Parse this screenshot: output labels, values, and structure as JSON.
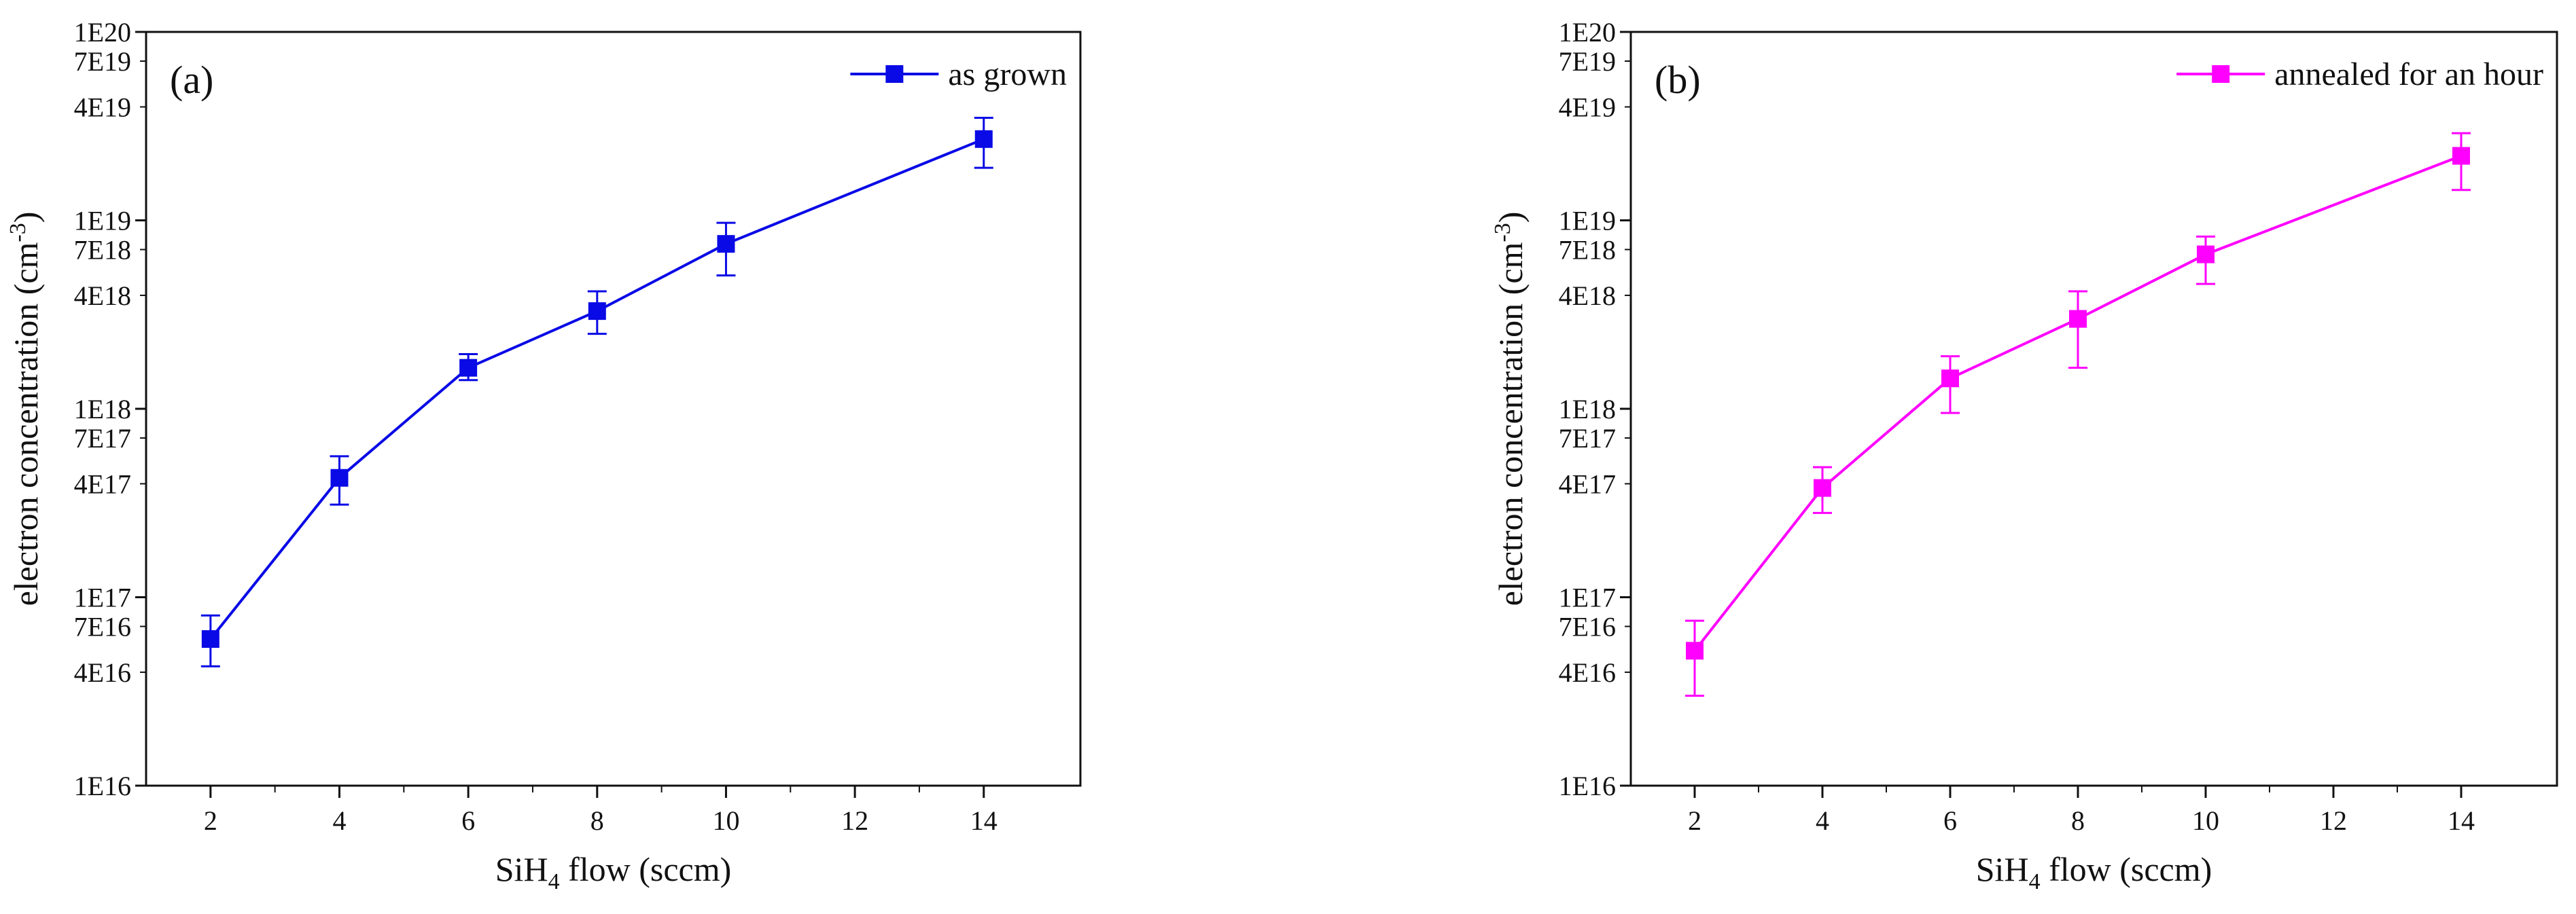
{
  "chart_data": [
    {
      "type": "line",
      "panel_label": "(a)",
      "xlabel": {
        "main": "SiH",
        "sub": "4",
        "rest": " flow (sccm)"
      },
      "ylabel": {
        "main": "electron concentration (cm",
        "sup": "-3",
        "close": ")"
      },
      "xlim": [
        1,
        15.5
      ],
      "ylim": [
        1e+16,
        1e+20
      ],
      "yscale": "log",
      "x_ticks": [
        2,
        4,
        6,
        8,
        10,
        12,
        14
      ],
      "x_tick_labels": [
        "2",
        "4",
        "6",
        "8",
        "10",
        "12",
        "14"
      ],
      "y_ticks": [
        1e+16,
        4e+16,
        7e+16,
        1e+17,
        4e+17,
        7e+17,
        1e+18,
        4e+18,
        7e+18,
        1e+19,
        4e+19,
        7e+19,
        1e+20
      ],
      "y_tick_labels": [
        "1E16",
        "4E16",
        "7E16",
        "1E17",
        "4E17",
        "7E17",
        "1E18",
        "4E18",
        "7E18",
        "1E19",
        "4E19",
        "7E19",
        "1E20"
      ],
      "legend_position": "top-right",
      "series": [
        {
          "name": "as grown",
          "color": "#0a0ae6",
          "marker": "square",
          "x": [
            2,
            4,
            6,
            8,
            10,
            14
          ],
          "y": [
            6e+16,
            4.3e+17,
            1.65e+18,
            3.3e+18,
            7.5e+18,
            2.7e+19
          ],
          "err_low": [
            4.3e+16,
            3.1e+17,
            1.42e+18,
            2.5e+18,
            5.1e+18,
            1.9e+19
          ],
          "err_high": [
            8e+16,
            5.6e+17,
            1.95e+18,
            4.2e+18,
            9.7e+18,
            3.5e+19
          ]
        }
      ]
    },
    {
      "type": "line",
      "panel_label": "(b)",
      "xlabel": {
        "main": "SiH",
        "sub": "4",
        "rest": " flow (sccm)"
      },
      "ylabel": {
        "main": "electron concentration (cm",
        "sup": "-3",
        "close": ")"
      },
      "xlim": [
        1,
        15.5
      ],
      "ylim": [
        1e+16,
        1e+20
      ],
      "yscale": "log",
      "x_ticks": [
        2,
        4,
        6,
        8,
        10,
        12,
        14
      ],
      "x_tick_labels": [
        "2",
        "4",
        "6",
        "8",
        "10",
        "12",
        "14"
      ],
      "y_ticks": [
        1e+16,
        4e+16,
        7e+16,
        1e+17,
        4e+17,
        7e+17,
        1e+18,
        4e+18,
        7e+18,
        1e+19,
        4e+19,
        7e+19,
        1e+20
      ],
      "y_tick_labels": [
        "1E16",
        "4E16",
        "7E16",
        "1E17",
        "4E17",
        "7E17",
        "1E18",
        "4E18",
        "7E18",
        "1E19",
        "4E19",
        "7E19",
        "1E20"
      ],
      "legend_position": "top-right",
      "series": [
        {
          "name": "annealed for an hour",
          "color": "#ff00ff",
          "marker": "square",
          "x": [
            2,
            4,
            6,
            8,
            10,
            14
          ],
          "y": [
            5.2e+16,
            3.8e+17,
            1.45e+18,
            3e+18,
            6.6e+18,
            2.2e+19
          ],
          "err_low": [
            3e+16,
            2.8e+17,
            9.5e+17,
            1.65e+18,
            4.6e+18,
            1.45e+19
          ],
          "err_high": [
            7.5e+16,
            4.9e+17,
            1.9e+18,
            4.2e+18,
            8.2e+18,
            2.9e+19
          ]
        }
      ]
    }
  ]
}
